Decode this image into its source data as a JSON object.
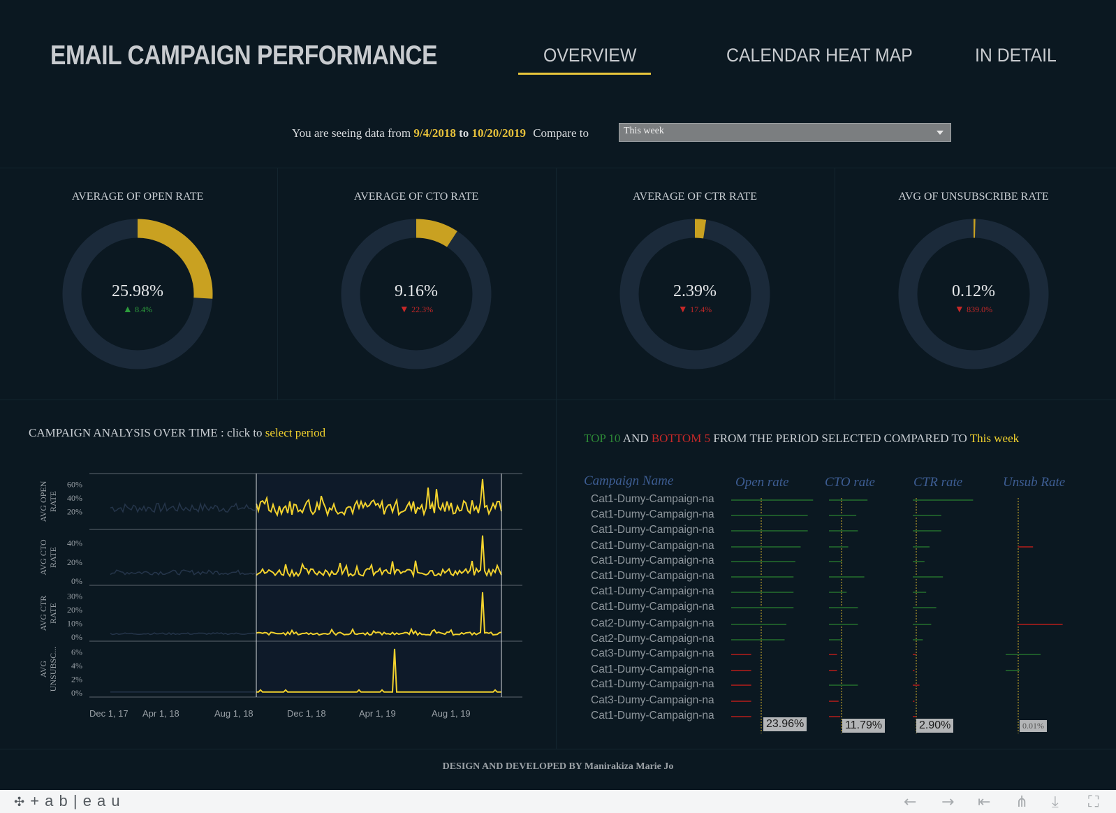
{
  "header": {
    "title": "EMAIL CAMPAIGN PERFORMANCE",
    "tabs": [
      {
        "label": "OVERVIEW"
      },
      {
        "label": "CALENDAR HEAT MAP"
      },
      {
        "label": "IN DETAIL"
      }
    ],
    "active_tab": "OVERVIEW",
    "accent_color": "#e8c53b"
  },
  "filter": {
    "prefix": "You are seeing data from",
    "start_date": "9/4/2018",
    "to": "to",
    "end_date": "10/20/2019",
    "compare_label": "Compare to",
    "compare_value": "This week"
  },
  "kpis": [
    {
      "label": "AVERAGE OF OPEN RATE",
      "value": "25.98%",
      "delta": "8.4%",
      "direction": "up",
      "fill": 0.26
    },
    {
      "label": "AVERAGE OF CTO RATE",
      "value": "9.16%",
      "delta": "22.3%",
      "direction": "down",
      "fill": 0.092
    },
    {
      "label": "AVERAGE OF CTR RATE",
      "value": "2.39%",
      "delta": "17.4%",
      "direction": "down",
      "fill": 0.024
    },
    {
      "label": "AVG OF UNSUBSCRIBE RATE",
      "value": "0.12%",
      "delta": "839.0%",
      "direction": "down",
      "fill": 0.0012
    }
  ],
  "analysis": {
    "title": "CAMPAIGN ANALYSIS  OVER TIME :  click to",
    "link": "select period"
  },
  "chart_data": {
    "type": "line",
    "x": [
      "Dec 1, 17",
      "Apr 1, 18",
      "Aug 1, 18",
      "Dec 1, 18",
      "Apr 1, 19",
      "Aug 1, 19"
    ],
    "selected_range": [
      "9/4/2018",
      "10/20/2019"
    ],
    "panels": [
      {
        "label": "AVG OPEN RATE",
        "ticks": [
          "60%",
          "40%",
          "20%"
        ],
        "ylim": [
          0,
          70
        ],
        "baseline": 25,
        "spike": 68
      },
      {
        "label": "AVG CTO RATE",
        "ticks": [
          "40%",
          "20%",
          "0%"
        ],
        "ylim": [
          0,
          50
        ],
        "baseline": 9,
        "spike": 48
      },
      {
        "label": "AVG CTR RATE",
        "ticks": [
          "30%",
          "20%",
          "10%",
          "0%"
        ],
        "ylim": [
          0,
          35
        ],
        "baseline": 2.4,
        "spike": 33
      },
      {
        "label": "AVG UNSUBSC...",
        "ticks": [
          "6%",
          "4%",
          "2%",
          "0%"
        ],
        "ylim": [
          0,
          7
        ],
        "baseline": 0.12,
        "spike": 6.5
      }
    ]
  },
  "top_bottom": {
    "top": "TOP 10",
    "and": "AND",
    "bottom": "BOTTOM  5",
    "rest": "FROM THE PERIOD SELECTED COMPARED TO",
    "compare": "This week",
    "columns": [
      "Campaign Name",
      "Open rate",
      "CTO rate",
      "CTR rate",
      "Unsub Rate"
    ],
    "rows": [
      {
        "name": "Cat1-Dumy-Campaign-na",
        "open": 46,
        "cto": 24,
        "ctr": 36,
        "unsub": 0
      },
      {
        "name": "Cat1-Dumy-Campaign-na",
        "open": 43,
        "cto": 17,
        "ctr": 17,
        "unsub": 0
      },
      {
        "name": "Cat1-Dumy-Campaign-na",
        "open": 43,
        "cto": 18,
        "ctr": 17,
        "unsub": 0
      },
      {
        "name": "Cat1-Dumy-Campaign-na",
        "open": 39,
        "cto": 12,
        "ctr": 10,
        "unsub": -4
      },
      {
        "name": "Cat1-Dumy-Campaign-na",
        "open": 36,
        "cto": 8,
        "ctr": 7,
        "unsub": 0
      },
      {
        "name": "Cat1-Dumy-Campaign-na",
        "open": 35,
        "cto": 22,
        "ctr": 18,
        "unsub": 0
      },
      {
        "name": "Cat1-Dumy-Campaign-na",
        "open": 35,
        "cto": 11,
        "ctr": 8,
        "unsub": 0
      },
      {
        "name": "Cat1-Dumy-Campaign-na",
        "open": 35,
        "cto": 18,
        "ctr": 14,
        "unsub": 0
      },
      {
        "name": "Cat2-Dumy-Campaign-na",
        "open": 31,
        "cto": 18,
        "ctr": 11,
        "unsub": -12
      },
      {
        "name": "Cat2-Dumy-Campaign-na",
        "open": 30,
        "cto": 8,
        "ctr": 6,
        "unsub": 0
      },
      {
        "name": "Cat3-Dumy-Campaign-na",
        "open": -11,
        "cto": -5,
        "ctr": -2,
        "unsub": 5
      },
      {
        "name": "Cat1-Dumy-Campaign-na",
        "open": -11,
        "cto": -5,
        "ctr": -1,
        "unsub": 2
      },
      {
        "name": "Cat1-Dumy-Campaign-na",
        "open": -11,
        "cto": 18,
        "ctr": -4,
        "unsub": 0
      },
      {
        "name": "Cat3-Dumy-Campaign-na",
        "open": -11,
        "cto": -6,
        "ctr": -1,
        "unsub": 0
      },
      {
        "name": "Cat1-Dumy-Campaign-na",
        "open": -11,
        "cto": -7,
        "ctr": -2,
        "unsub": 0
      }
    ],
    "reference": {
      "open": "23.96%",
      "cto": "11.79%",
      "ctr": "2.90%",
      "unsub": "0.01%"
    }
  },
  "footer": {
    "text": "DESIGN AND DEVELOPED BY Manirakiza Marie Jo"
  },
  "toolbar": {
    "brand": "+ a b | e a u"
  }
}
